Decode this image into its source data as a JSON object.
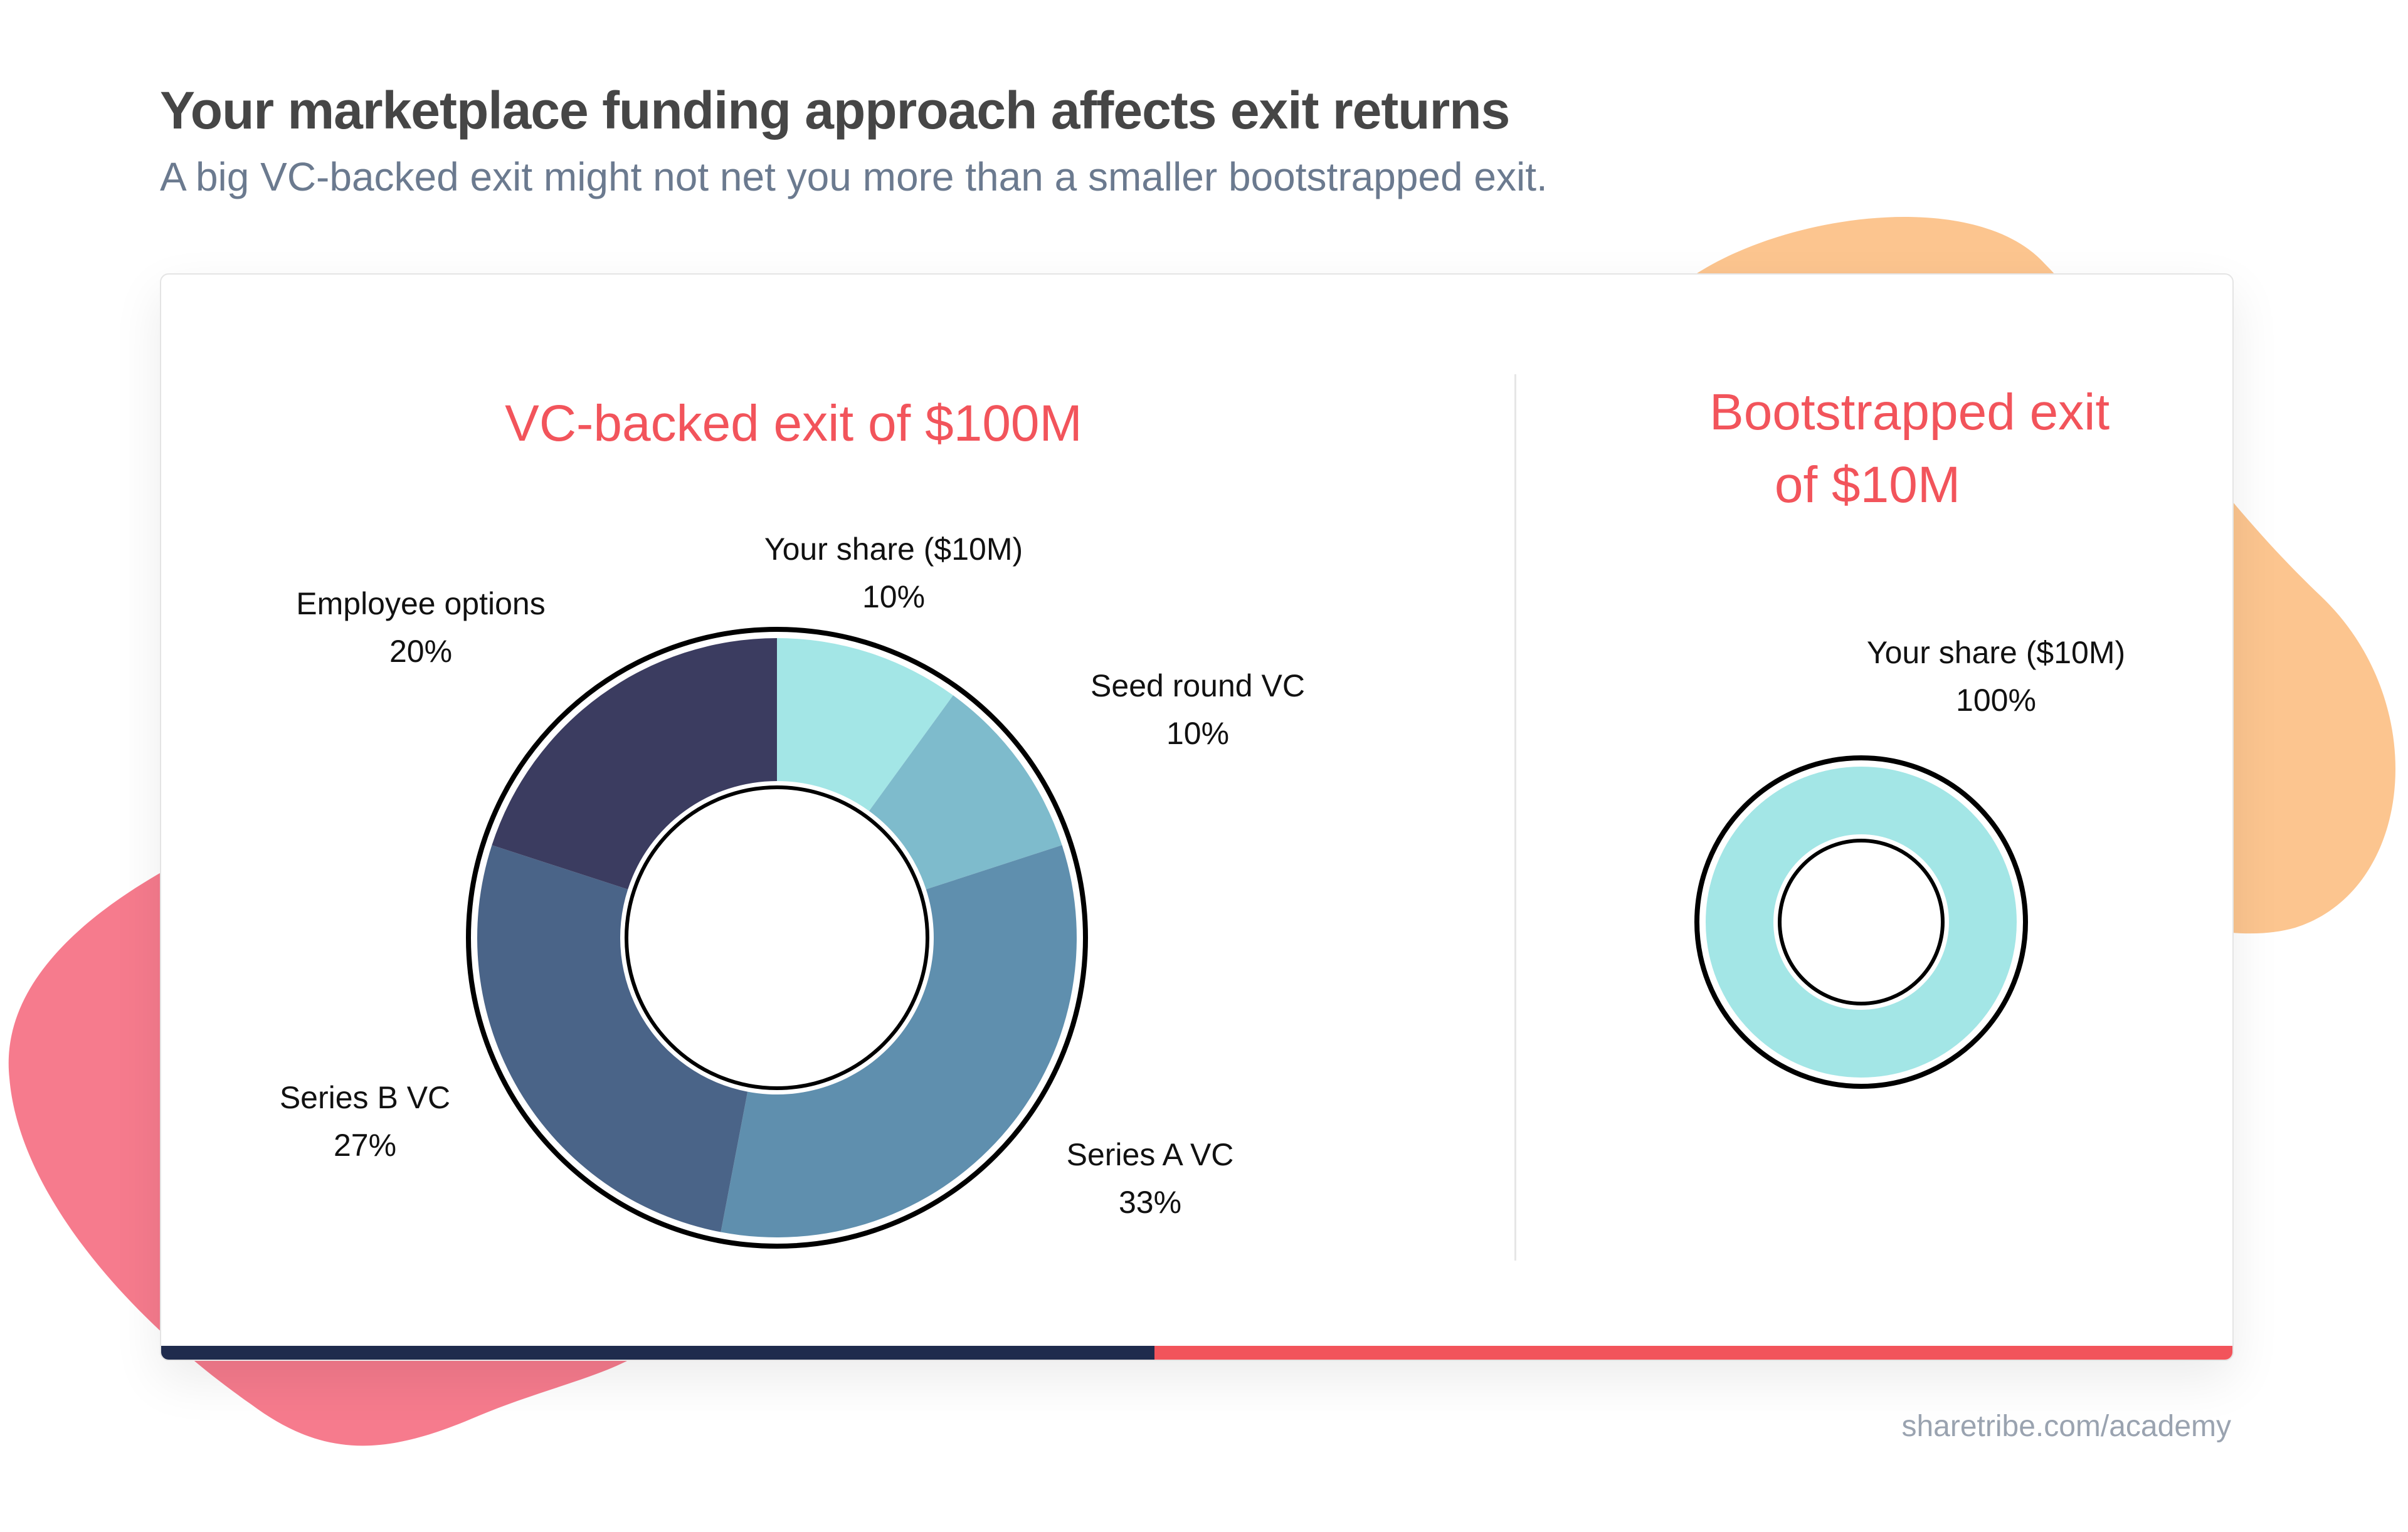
{
  "header": {
    "title": "Your marketplace funding approach affects exit returns",
    "subtitle": "A big VC-backed exit might not net you more than a smaller bootstrapped exit."
  },
  "footer": {
    "source": "sharetribe.com/academy"
  },
  "colors": {
    "accent": "#f2545b",
    "navy": "#1f2b4d",
    "blob_orange": "#fcc58f",
    "blob_pink": "#f67b8d"
  },
  "chart_data": [
    {
      "type": "pie",
      "title": "VC-backed exit of $100M",
      "donut": true,
      "slices": [
        {
          "label": "Your share ($10M)",
          "value": 10,
          "value_label": "10%",
          "color": "#a3e6e6"
        },
        {
          "label": "Seed round VC",
          "value": 10,
          "value_label": "10%",
          "color": "#7ebbcc"
        },
        {
          "label": "Series A VC",
          "value": 33,
          "value_label": "33%",
          "color": "#5f8fae"
        },
        {
          "label": "Series B VC",
          "value": 27,
          "value_label": "27%",
          "color": "#4a6488"
        },
        {
          "label": "Employee options",
          "value": 20,
          "value_label": "20%",
          "color": "#3b3c60"
        }
      ]
    },
    {
      "type": "pie",
      "title_lines": [
        "Bootstrapped exit",
        "of $10M"
      ],
      "donut": true,
      "slices": [
        {
          "label": "Your share ($10M)",
          "value": 100,
          "value_label": "100%",
          "color": "#a3e6e6"
        }
      ]
    }
  ]
}
